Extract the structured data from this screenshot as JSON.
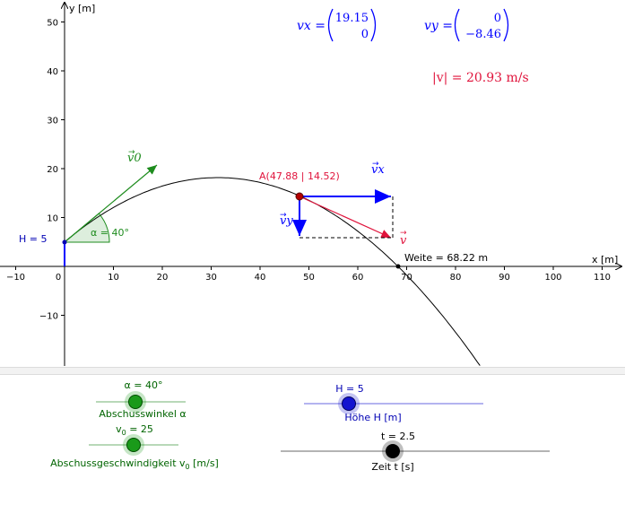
{
  "axes": {
    "x_label": "x [m]",
    "y_label": "y [m]",
    "x_ticks": [
      "−10",
      "0",
      "10",
      "20",
      "30",
      "40",
      "50",
      "60",
      "70",
      "80",
      "90",
      "100",
      "110"
    ],
    "y_ticks": [
      "50",
      "40",
      "30",
      "20",
      "10",
      "−10"
    ]
  },
  "labels": {
    "h_text": "H = 5",
    "alpha_angle": "α = 40°",
    "point_a": "A(47.88 | 14.52)",
    "weite": "Weite = 68.22 m",
    "v0": "v0",
    "vx": "vx",
    "vy": "vy",
    "v": "v"
  },
  "vectors_panel": {
    "vx_name": "vx =",
    "vx_x": "19.15",
    "vx_y": "0",
    "vy_name": "vy =",
    "vy_x": "0",
    "vy_y": "−8.46",
    "speed": "|v| = 20.93 m/s"
  },
  "sliders": {
    "alpha": {
      "value_label": "α = 40°",
      "name": "Abschusswinkel α",
      "color": "#006400",
      "fill": "#1a9a1a",
      "position": 0.42
    },
    "v0": {
      "value_label": "v0 = 25",
      "name": "Abschussgeschwindigkeit v0 [m/s]",
      "color": "#006400",
      "fill": "#1a9a1a",
      "position": 0.5
    },
    "h": {
      "value_label": "H = 5",
      "name": "Höhe H [m]",
      "color": "#0000b4",
      "fill": "#1414d0",
      "position": 0.25
    },
    "t": {
      "value_label": "t = 2.5",
      "name": "Zeit t [s]",
      "color": "#000000",
      "fill": "#000000",
      "position": 0.42
    }
  },
  "colors": {
    "green": "#1e8c1e",
    "blue": "#0000ff",
    "red": "#e0143c",
    "dark_red": "#b40000",
    "axis": "#000000"
  }
}
